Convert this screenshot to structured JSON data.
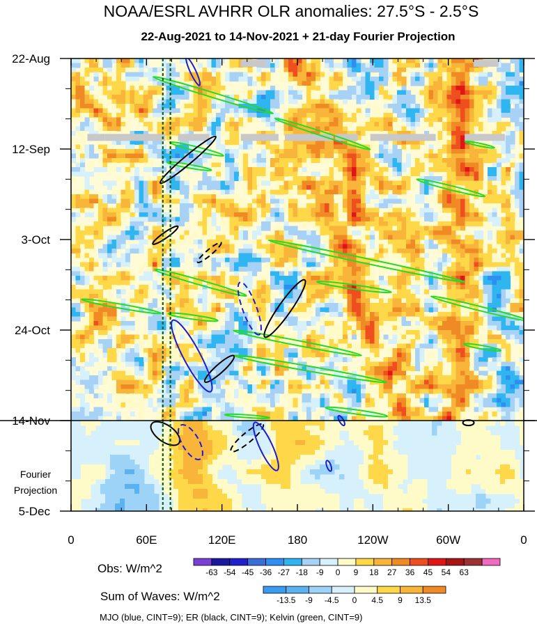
{
  "chart_data": {
    "type": "heatmap",
    "title": "NOAA/ESRL AVHRR OLR anomalies: 27.5°S - 2.5°S",
    "subtitle": "22-Aug-2021 to 14-Nov-2021 + 21-day Fourier Projection",
    "x_ticks": [
      {
        "label": "0",
        "lon": 0
      },
      {
        "label": "60E",
        "lon": 60
      },
      {
        "label": "120E",
        "lon": 120
      },
      {
        "label": "180",
        "lon": 180
      },
      {
        "label": "120W",
        "lon": 240
      },
      {
        "label": "60W",
        "lon": 300
      },
      {
        "label": "0",
        "lon": 360
      }
    ],
    "xlim": [
      0,
      360
    ],
    "y_ticks": [
      {
        "label": "22-Aug",
        "day": 0
      },
      {
        "label": "12-Sep",
        "day": 21
      },
      {
        "label": "3-Oct",
        "day": 42
      },
      {
        "label": "24-Oct",
        "day": 63
      },
      {
        "label": "14-Nov",
        "day": 84
      },
      {
        "label": "5-Dec",
        "day": 105
      }
    ],
    "ylim_days": [
      0,
      105
    ],
    "projection_start_day": 84,
    "projection_label_line1": "Fourier",
    "projection_label_line2": "Projection",
    "reference_lons": [
      73,
      79
    ],
    "obs_colorbar": {
      "label": "Obs: W/m^2",
      "levels": [
        "-63",
        "-54",
        "-45",
        "-36",
        "-27",
        "-18",
        "-9",
        "0",
        "9",
        "18",
        "27",
        "36",
        "45",
        "54",
        "63"
      ],
      "colors": [
        "#7b3fd6",
        "#1a1a9e",
        "#2020cc",
        "#3a6fd8",
        "#2f8ff0",
        "#2fb6f0",
        "#a8d2f5",
        "#d6f1fb",
        "#fffbc8",
        "#ffd84a",
        "#f9b53a",
        "#f08a25",
        "#ef4e1e",
        "#e01616",
        "#a81313",
        "#9e3232",
        "#f06bbf"
      ]
    },
    "waves_colorbar": {
      "label": "Sum of Waves: W/m^2",
      "levels": [
        "-13.5",
        "-9",
        "-4.5",
        "0",
        "4.5",
        "9",
        "13.5"
      ],
      "colors": [
        "#3a9cf0",
        "#5ab2f0",
        "#9dd3f7",
        "#d6f1fb",
        "#fffbc8",
        "#ffd84a",
        "#f9b53a",
        "#f08a25"
      ]
    },
    "contour_legend": "MJO (blue, CINT=9); ER (black, CINT=9); Kelvin (green, CINT=9)",
    "series": [
      {
        "name": "MJO",
        "color": "#1c1cd6",
        "dashed_color": "#1c1cd6"
      },
      {
        "name": "ER",
        "color": "#000000"
      },
      {
        "name": "Kelvin",
        "color": "#22dd22"
      }
    ],
    "missing_data_color": "#c8c8c8"
  }
}
